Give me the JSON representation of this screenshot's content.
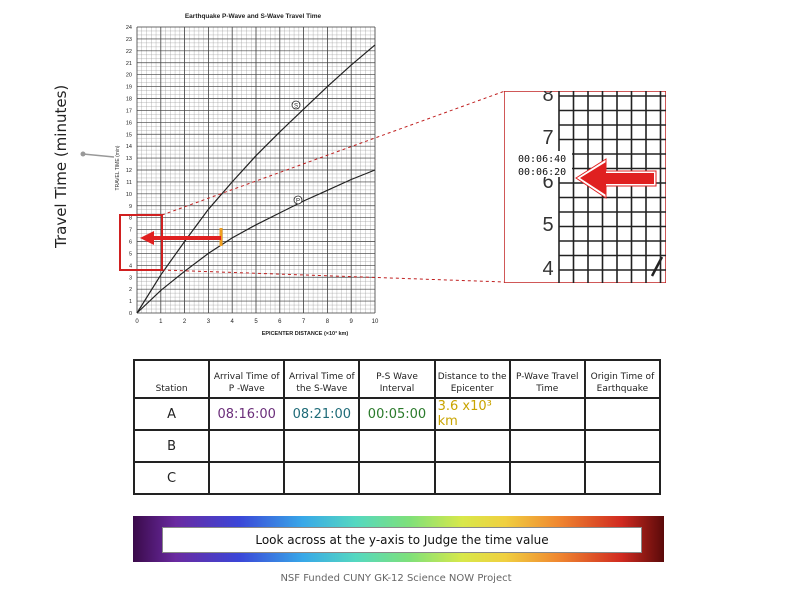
{
  "slide": {
    "y_axis_label": "Travel Time (minutes)",
    "instruction": "Look across at the y-axis to Judge the time value",
    "footer": "NSF Funded CUNY GK-12 Science NOW Project"
  },
  "chart": {
    "title": "Earthquake P-Wave and S-Wave Travel Time",
    "y_tick_labels": [
      "0",
      "1",
      "2",
      "3",
      "4",
      "5",
      "6",
      "7",
      "8",
      "9",
      "10",
      "11",
      "12",
      "13",
      "14",
      "15",
      "16",
      "17",
      "18",
      "19",
      "20",
      "21",
      "22",
      "23",
      "24"
    ],
    "x_tick_labels": [
      "0",
      "1",
      "2",
      "3",
      "4",
      "5",
      "6",
      "7",
      "8",
      "9",
      "10"
    ],
    "x_label": "EPICENTER DISTANCE (×10³ km)",
    "inner_y_label": "TRAVEL TIME (min)",
    "s_label": "S",
    "p_label": "P"
  },
  "callout": {
    "y_tick_labels": [
      "4",
      "5",
      "6",
      "7",
      "8"
    ],
    "time_top": "00:06:40",
    "time_bottom": "00:06:20"
  },
  "table": {
    "headers": [
      "Station",
      "Arrival Time of P -Wave",
      "Arrival Time of the S-Wave",
      "P-S Wave Interval",
      "Distance to the Epicenter",
      "P-Wave Travel Time",
      "Origin Time of Earthquake"
    ],
    "rows": [
      {
        "station": "A",
        "p_arrival": "08:16:00",
        "s_arrival": "08:21:00",
        "interval": "00:05:00",
        "distance": "3.6 x10³ km",
        "travel": "",
        "origin": ""
      },
      {
        "station": "B",
        "p_arrival": "",
        "s_arrival": "",
        "interval": "",
        "distance": "",
        "travel": "",
        "origin": ""
      },
      {
        "station": "C",
        "p_arrival": "",
        "s_arrival": "",
        "interval": "",
        "distance": "",
        "travel": "",
        "origin": ""
      }
    ]
  },
  "colors": {
    "arrow": "#e02020",
    "highlight": "#d02020",
    "p_arrival": "#6b2e7a",
    "s_arrival": "#1f6b78",
    "interval": "#2a7a2a",
    "distance": "#c9a400"
  }
}
